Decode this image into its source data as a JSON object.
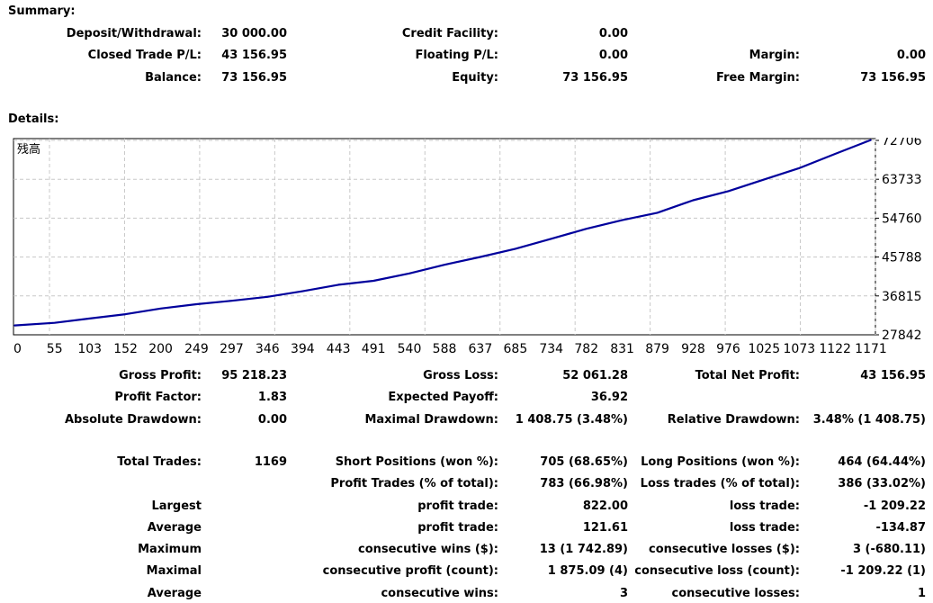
{
  "summary": {
    "title": "Summary:",
    "deposit_label": "Deposit/Withdrawal:",
    "deposit_value": "30 000.00",
    "closed_label": "Closed Trade P/L:",
    "closed_value": "43 156.95",
    "balance_label": "Balance:",
    "balance_value": "73 156.95",
    "credit_label": "Credit Facility:",
    "credit_value": "0.00",
    "floating_label": "Floating P/L:",
    "floating_value": "0.00",
    "equity_label": "Equity:",
    "equity_value": "73 156.95",
    "margin_label": "Margin:",
    "margin_value": "0.00",
    "free_margin_label": "Free Margin:",
    "free_margin_value": "73 156.95"
  },
  "details": {
    "title": "Details:"
  },
  "chart_data": {
    "type": "line",
    "series": [
      {
        "name": "残高",
        "x": [
          0,
          55,
          103,
          152,
          200,
          249,
          297,
          346,
          394,
          443,
          491,
          540,
          588,
          637,
          685,
          734,
          782,
          831,
          879,
          928,
          976,
          1025,
          1073,
          1122,
          1171
        ],
        "values": [
          30000,
          30600,
          31600,
          32600,
          33900,
          34900,
          35700,
          36600,
          37900,
          39400,
          40300,
          42000,
          44000,
          45800,
          47700,
          50000,
          52300,
          54300,
          56000,
          58900,
          61000,
          63700,
          66300,
          69600,
          72800
        ]
      }
    ],
    "x_ticks": [
      "0",
      "55",
      "103",
      "152",
      "200",
      "249",
      "297",
      "346",
      "394",
      "443",
      "491",
      "540",
      "588",
      "637",
      "685",
      "734",
      "782",
      "831",
      "879",
      "928",
      "976",
      "1025",
      "1073",
      "1122",
      "1171"
    ],
    "y_ticks": [
      "72706",
      "63733",
      "54760",
      "45788",
      "36815",
      "27842"
    ],
    "ylim": [
      27842,
      72706
    ],
    "xlim": [
      0,
      1171
    ],
    "grid": true,
    "legend": "top-left",
    "line_color": "#00009c",
    "grid_color": "#c8c8c8"
  },
  "stats": {
    "gross_profit_label": "Gross Profit:",
    "gross_profit_value": "95 218.23",
    "gross_loss_label": "Gross Loss:",
    "gross_loss_value": "52 061.28",
    "total_net_label": "Total Net Profit:",
    "total_net_value": "43 156.95",
    "profit_factor_label": "Profit Factor:",
    "profit_factor_value": "1.83",
    "expected_payoff_label": "Expected Payoff:",
    "expected_payoff_value": "36.92",
    "abs_dd_label": "Absolute Drawdown:",
    "abs_dd_value": "0.00",
    "max_dd_label": "Maximal Drawdown:",
    "max_dd_value": "1 408.75 (3.48%)",
    "rel_dd_label": "Relative Drawdown:",
    "rel_dd_value": "3.48% (1 408.75)",
    "total_trades_label": "Total Trades:",
    "total_trades_value": "1169",
    "short_label": "Short Positions (won %):",
    "short_value": "705 (68.65%)",
    "long_label": "Long Positions (won %):",
    "long_value": "464 (64.44%)",
    "profit_trades_label": "Profit Trades (% of total):",
    "profit_trades_value": "783 (66.98%)",
    "loss_trades_label": "Loss trades (% of total):",
    "loss_trades_value": "386 (33.02%)",
    "largest_label": "Largest",
    "largest_profit_label": "profit trade:",
    "largest_profit_value": "822.00",
    "largest_loss_label": "loss trade:",
    "largest_loss_value": "-1 209.22",
    "average_label": "Average",
    "average_profit_label": "profit trade:",
    "average_profit_value": "121.61",
    "average_loss_label": "loss trade:",
    "average_loss_value": "-134.87",
    "maximum_label": "Maximum",
    "max_wins_label": "consecutive wins ($):",
    "max_wins_value": "13 (1 742.89)",
    "max_losses_label": "consecutive losses ($):",
    "max_losses_value": "3 (-680.11)",
    "maximal_label": "Maximal",
    "maximal_profit_label": "consecutive profit (count):",
    "maximal_profit_value": "1 875.09 (4)",
    "maximal_loss_label": "consecutive loss (count):",
    "maximal_loss_value": "-1 209.22 (1)",
    "average2_label": "Average",
    "avg_wins_label": "consecutive wins:",
    "avg_wins_value": "3",
    "avg_losses_label": "consecutive losses:",
    "avg_losses_value": "1"
  }
}
